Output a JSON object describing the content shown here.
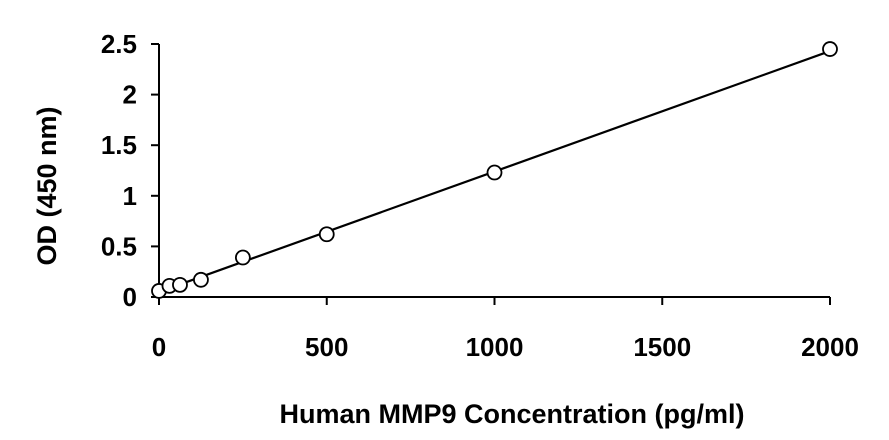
{
  "chart_data": {
    "type": "scatter",
    "title": "",
    "xlabel": "Human MMP9 Concentration (pg/ml)",
    "ylabel": "OD (450 nm)",
    "xlim": [
      0,
      2000
    ],
    "ylim": [
      0,
      2.5
    ],
    "x_ticks": [
      0,
      500,
      1000,
      1500,
      2000
    ],
    "x_tick_labels": [
      "0",
      "500",
      "1000",
      "1500",
      "2000"
    ],
    "y_ticks": [
      0,
      0.5,
      1,
      1.5,
      2,
      2.5
    ],
    "y_tick_labels": [
      "0",
      "0.5",
      "1",
      "1.5",
      "2",
      "2.5"
    ],
    "grid": false,
    "legend": "none",
    "series": [
      {
        "marker": "open-circle",
        "color": "#000000",
        "x": [
          0,
          31.25,
          62.5,
          125,
          250,
          500,
          1000,
          2000
        ],
        "y": [
          0.06,
          0.11,
          0.12,
          0.17,
          0.39,
          0.62,
          1.23,
          2.45
        ]
      }
    ],
    "trendline": {
      "type": "linear",
      "color": "#000000",
      "x": [
        0,
        2000
      ],
      "y": [
        0.05,
        2.43
      ]
    }
  }
}
